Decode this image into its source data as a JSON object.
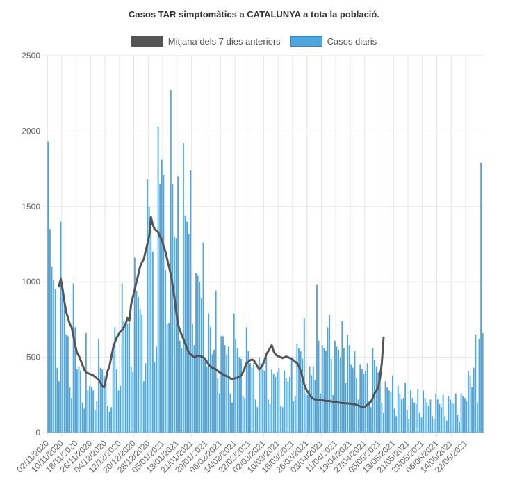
{
  "chart_data": {
    "type": "bar",
    "title": "Casos TAR simptomàtics a CATALUNYA a tota la població.",
    "xlabel": "",
    "ylabel": "",
    "ylim": [
      0,
      2500
    ],
    "yticks": [
      0,
      500,
      1000,
      1500,
      2000,
      2500
    ],
    "grid": true,
    "legend_position": "top",
    "start_date": "2020-11-02",
    "x_tick_labels": [
      "02/11/2020",
      "10/11/2020",
      "18/11/2020",
      "26/11/2020",
      "04/12/2020",
      "12/12/2020",
      "20/12/2020",
      "28/12/2020",
      "05/01/2021",
      "13/01/2021",
      "21/01/2021",
      "29/01/2021",
      "06/02/2021",
      "14/02/2021",
      "22/02/2021",
      "02/03/2021",
      "10/03/2021",
      "18/03/2021",
      "26/03/2021",
      "03/04/2021",
      "11/04/2021",
      "19/04/2021",
      "27/04/2021",
      "05/05/2021",
      "13/05/2021",
      "21/05/2021",
      "29/05/2021",
      "06/06/2021",
      "14/06/2021",
      "22/06/2021"
    ],
    "series": [
      {
        "name": "Mitjana dels 7 dies anteriors",
        "type": "line",
        "color": "#555555",
        "values": [
          null,
          null,
          null,
          null,
          null,
          null,
          970,
          1020,
          950,
          870,
          800,
          760,
          720,
          700,
          640,
          580,
          530,
          510,
          480,
          450,
          420,
          400,
          395,
          390,
          385,
          380,
          370,
          360,
          350,
          330,
          310,
          300,
          350,
          410,
          440,
          500,
          560,
          600,
          630,
          650,
          670,
          680,
          700,
          720,
          760,
          740,
          850,
          900,
          950,
          1000,
          1050,
          1100,
          1130,
          1150,
          1200,
          1250,
          1300,
          1430,
          1380,
          1350,
          1340,
          1330,
          1300,
          1280,
          1240,
          1200,
          1150,
          1100,
          1050,
          980,
          900,
          800,
          720,
          680,
          650,
          620,
          590,
          560,
          530,
          520,
          510,
          500,
          505,
          510,
          508,
          505,
          500,
          490,
          470,
          450,
          440,
          430,
          425,
          420,
          410,
          400,
          395,
          385,
          380,
          375,
          370,
          360,
          355,
          358,
          362,
          365,
          370,
          380,
          400,
          430,
          460,
          470,
          480,
          485,
          480,
          460,
          440,
          420,
          430,
          450,
          480,
          520,
          540,
          560,
          580,
          540,
          520,
          510,
          505,
          500,
          495,
          500,
          505,
          500,
          495,
          490,
          480,
          470,
          460,
          440,
          410,
          370,
          320,
          290,
          270,
          250,
          235,
          225,
          220,
          215,
          215,
          215,
          215,
          212,
          210,
          210,
          210,
          208,
          205,
          205,
          205,
          200,
          198,
          196,
          196,
          195,
          194,
          193,
          192,
          190,
          188,
          185,
          180,
          175,
          172,
          170,
          175,
          185,
          195,
          205,
          230,
          260,
          280,
          300,
          360,
          460,
          630
        ]
      },
      {
        "name": "Casos diaris",
        "type": "bar",
        "color": "#4da6e0",
        "values": [
          1930,
          1350,
          1100,
          1010,
          950,
          430,
          340,
          1400,
          1000,
          850,
          650,
          640,
          300,
          230,
          990,
          700,
          420,
          440,
          410,
          200,
          160,
          660,
          280,
          310,
          300,
          280,
          150,
          210,
          620,
          430,
          420,
          380,
          350,
          180,
          140,
          170,
          590,
          700,
          420,
          280,
          310,
          990,
          740,
          720,
          720,
          730,
          440,
          400,
          1160,
          940,
          900,
          820,
          780,
          340,
          460,
          1680,
          1500,
          1340,
          1200,
          470,
          570,
          2030,
          1650,
          1810,
          1710,
          1080,
          720,
          730,
          2270,
          1650,
          1300,
          1290,
          1700,
          610,
          560,
          1920,
          1440,
          1400,
          1320,
          1740,
          720,
          580,
          1060,
          1040,
          1000,
          890,
          1260,
          490,
          440,
          790,
          700,
          520,
          550,
          940,
          360,
          260,
          640,
          640,
          580,
          520,
          570,
          260,
          200,
          790,
          620,
          560,
          500,
          490,
          240,
          230,
          700,
          540,
          460,
          430,
          460,
          220,
          170,
          500,
          460,
          420,
          410,
          500,
          220,
          190,
          420,
          390,
          370,
          400,
          430,
          180,
          170,
          410,
          360,
          340,
          370,
          500,
          210,
          240,
          590,
          560,
          540,
          490,
          760,
          260,
          250,
          440,
          380,
          440,
          350,
          980,
          610,
          260,
          580,
          560,
          540,
          700,
          780,
          490,
          250,
          610,
          570,
          550,
          500,
          740,
          560,
          330,
          650,
          580,
          450,
          430,
          540,
          360,
          220,
          450,
          420,
          390,
          410,
          460,
          210,
          170,
          560,
          480,
          440,
          400,
          410,
          200,
          130,
          340,
          300,
          280,
          270,
          380,
          160,
          110,
          310,
          260,
          220,
          230,
          330,
          150,
          90,
          280,
          230,
          200,
          190,
          290,
          130,
          100,
          280,
          230,
          200,
          180,
          220,
          110,
          90,
          260,
          220,
          190,
          170,
          250,
          110,
          80,
          240,
          220,
          200,
          190,
          260,
          120,
          70,
          260,
          240,
          230,
          210,
          410,
          380,
          300,
          430,
          650,
          200,
          620,
          1790,
          660
        ]
      }
    ]
  }
}
